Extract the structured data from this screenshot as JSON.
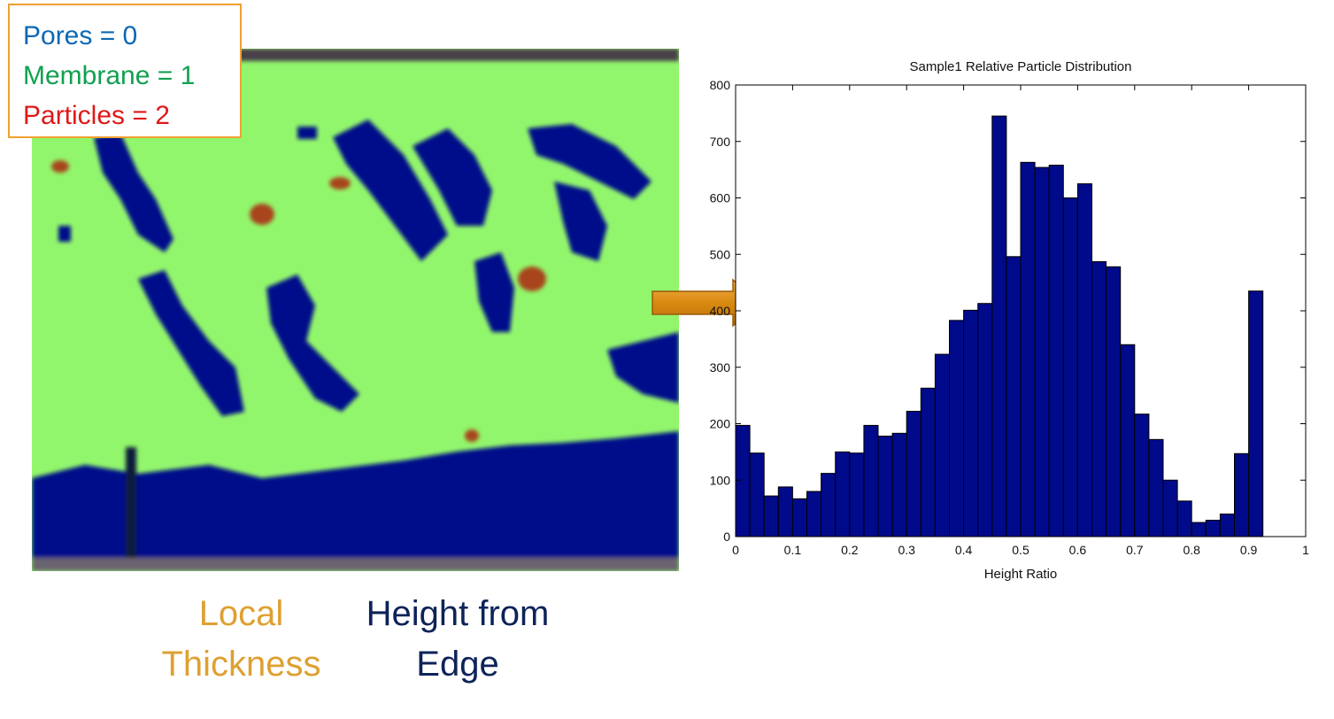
{
  "legend": {
    "pores": "Pores = 0",
    "membrane": "Membrane = 1",
    "particles": "Particles = 2"
  },
  "captions": {
    "local_line1": "Local",
    "local_line2": "Thickness",
    "height_line1": "Height from",
    "height_line2": "Edge"
  },
  "colors": {
    "pores": "#0a68b4",
    "membrane": "#10a050",
    "particles": "#e01818",
    "local_thickness": "#dea030",
    "height_from_edge": "#0d2358",
    "segmentation_pore": "#000a8a",
    "segmentation_membrane": "#92f66c",
    "segmentation_particle": "#a8441a",
    "bar_fill": "#000a8a",
    "arrow": "#d98a10"
  },
  "chart_data": {
    "type": "bar",
    "title": "Sample1 Relative Particle Distribution",
    "xlabel": "Height Ratio",
    "ylabel": "",
    "xlim": [
      0,
      1
    ],
    "ylim": [
      0,
      800
    ],
    "xticks": [
      "0",
      "0.1",
      "0.2",
      "0.3",
      "0.4",
      "0.5",
      "0.6",
      "0.7",
      "0.8",
      "0.9",
      "1"
    ],
    "yticks": [
      "0",
      "100",
      "200",
      "300",
      "400",
      "500",
      "600",
      "700",
      "800"
    ],
    "bin_width": 0.025,
    "x": [
      0.0125,
      0.0375,
      0.0625,
      0.0875,
      0.1125,
      0.1375,
      0.1625,
      0.1875,
      0.2125,
      0.2375,
      0.2625,
      0.2875,
      0.3125,
      0.3375,
      0.3625,
      0.3875,
      0.4125,
      0.4375,
      0.4625,
      0.4875,
      0.5125,
      0.5375,
      0.5625,
      0.5875,
      0.6125,
      0.6375,
      0.6625,
      0.6875,
      0.7125,
      0.7375,
      0.7625,
      0.7875,
      0.8125,
      0.8375,
      0.8625,
      0.8875,
      0.9125,
      0.9375,
      0.9625,
      0.9875
    ],
    "values": [
      197,
      148,
      72,
      88,
      67,
      80,
      112,
      150,
      148,
      197,
      178,
      183,
      222,
      263,
      323,
      383,
      401,
      413,
      745,
      496,
      663,
      654,
      658,
      600,
      625,
      487,
      478,
      340,
      217,
      172,
      100,
      63,
      25,
      29,
      40,
      147,
      435,
      0,
      0,
      0
    ],
    "grid": false
  }
}
